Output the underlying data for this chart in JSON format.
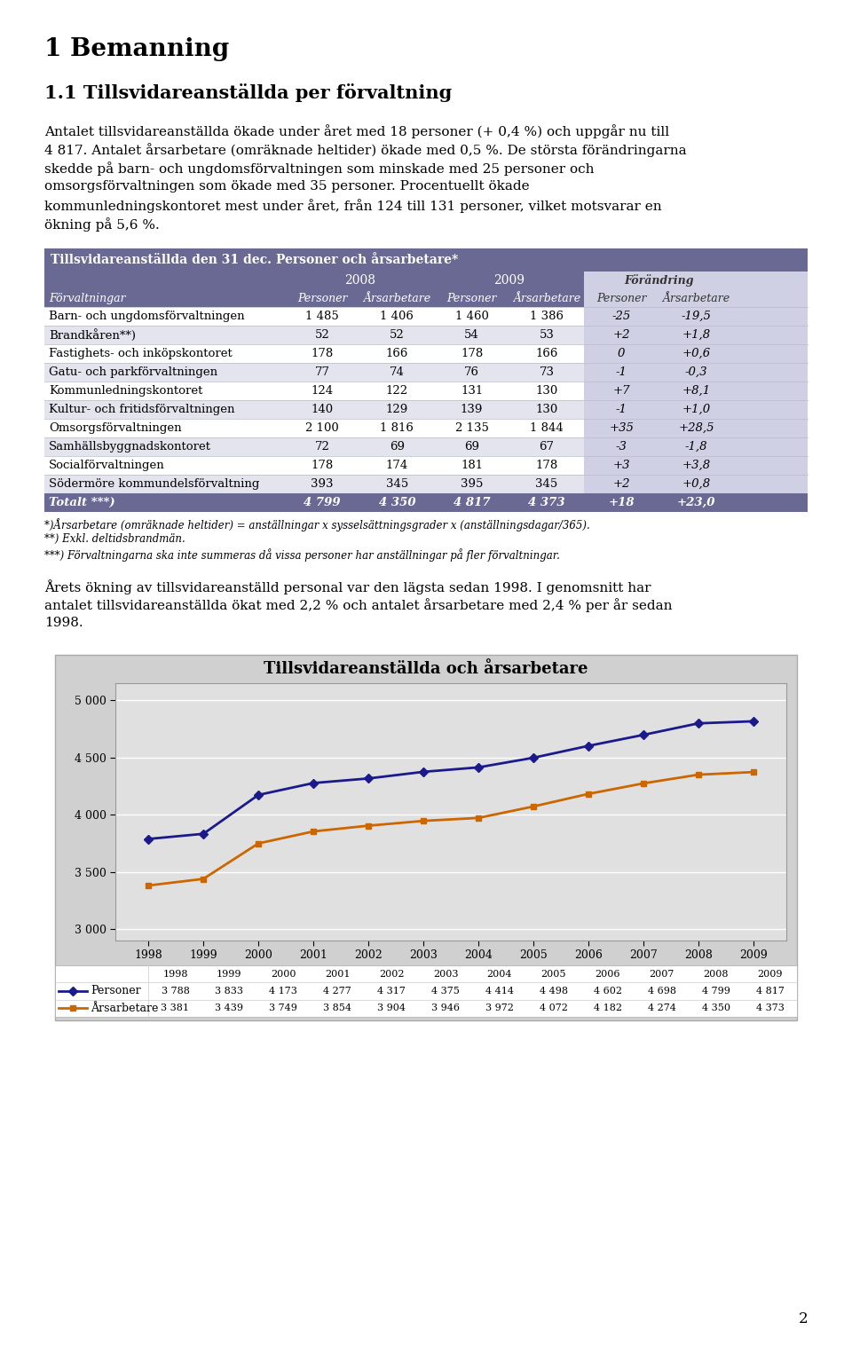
{
  "title_h1": "1 Bemanning",
  "title_h2": "1.1 Tillsvidareanställda per förvaltning",
  "paragraph1_lines": [
    "Antalet tillsvidareanställda ökade under året med 18 personer (+ 0,4 %) och uppgår nu till",
    "4 817. Antalet årsarbetare (omräknade heltider) ökade med 0,5 %. De största förändringarna",
    "skedde på barn- och ungdomsförvaltningen som minskade med 25 personer och",
    "omsorgsförvaltningen som ökade med 35 personer. Procentuellt ökade",
    "kommunledningskontoret mest under året, från 124 till 131 personer, vilket motsvarar en",
    "ökning på 5,6 %."
  ],
  "table_title": "Tillsvidareanställda den 31 dec. Personer och årsarbetare*",
  "table_rows": [
    [
      "Barn- och ungdomsförvaltningen",
      "1 485",
      "1 406",
      "1 460",
      "1 386",
      "-25",
      "-19,5"
    ],
    [
      "Brandkåren**)",
      "52",
      "52",
      "54",
      "53",
      "+2",
      "+1,8"
    ],
    [
      "Fastighets- och inköpskontoret",
      "178",
      "166",
      "178",
      "166",
      "0",
      "+0,6"
    ],
    [
      "Gatu- och parkförvaltningen",
      "77",
      "74",
      "76",
      "73",
      "-1",
      "-0,3"
    ],
    [
      "Kommunledningskontoret",
      "124",
      "122",
      "131",
      "130",
      "+7",
      "+8,1"
    ],
    [
      "Kultur- och fritidsförvaltningen",
      "140",
      "129",
      "139",
      "130",
      "-1",
      "+1,0"
    ],
    [
      "Omsorgsförvaltningen",
      "2 100",
      "1 816",
      "2 135",
      "1 844",
      "+35",
      "+28,5"
    ],
    [
      "Samhällsbyggnadskontoret",
      "72",
      "69",
      "69",
      "67",
      "-3",
      "-1,8"
    ],
    [
      "Socialförvaltningen",
      "178",
      "174",
      "181",
      "178",
      "+3",
      "+3,8"
    ],
    [
      "Södermöre kommundelsförvaltning",
      "393",
      "345",
      "395",
      "345",
      "+2",
      "+0,8"
    ]
  ],
  "table_total": [
    "Totalt ***)",
    "4 799",
    "4 350",
    "4 817",
    "4 373",
    "+18",
    "+23,0"
  ],
  "footnote1": "*)Årsarbetare (omräknade heltider) = anställningar x sysselsättningsgrader x (anställningsdagar/365).",
  "footnote2": "**) Exkl. deltidsbrandmän.",
  "footnote3": "***) Förvaltningarna ska inte summeras då vissa personer har anställningar på fler förvaltningar.",
  "paragraph2_lines": [
    "Årets ökning av tillsvidareanställd personal var den lägsta sedan 1998. I genomsnitt har",
    "antalet tillsvidareanställda ökat med 2,2 % och antalet årsarbetare med 2,4 % per år sedan",
    "1998."
  ],
  "chart_title": "Tillsvidareanställda och årsarbetare",
  "years": [
    1998,
    1999,
    2000,
    2001,
    2002,
    2003,
    2004,
    2005,
    2006,
    2007,
    2008,
    2009
  ],
  "personer": [
    3788,
    3833,
    4173,
    4277,
    4317,
    4375,
    4414,
    4498,
    4602,
    4698,
    4799,
    4817
  ],
  "arsarbetare": [
    3381,
    3439,
    3749,
    3854,
    3904,
    3946,
    3972,
    4072,
    4182,
    4274,
    4350,
    4373
  ],
  "legend_personer_vals": [
    "3 788",
    "3 833",
    "4 173",
    "4 277",
    "4 317",
    "4 375",
    "4 414",
    "4 498",
    "4 602",
    "4 698",
    "4 799",
    "4 817"
  ],
  "legend_arsarbetare_vals": [
    "3 381",
    "3 439",
    "3 749",
    "3 854",
    "3 904",
    "3 946",
    "3 972",
    "4 072",
    "4 182",
    "4 274",
    "4 350",
    "4 373"
  ],
  "header_bg": "#696994",
  "alt_row_bg": "#e4e4ef",
  "total_bg": "#696994",
  "change_col_bg": "#d0d0e4",
  "chart_outer_bg": "#d0d0d0",
  "plot_bg": "#e0e0e0",
  "line_color_personer": "#1a1a8c",
  "line_color_arsarbetare": "#cc6600",
  "page_number": "2"
}
